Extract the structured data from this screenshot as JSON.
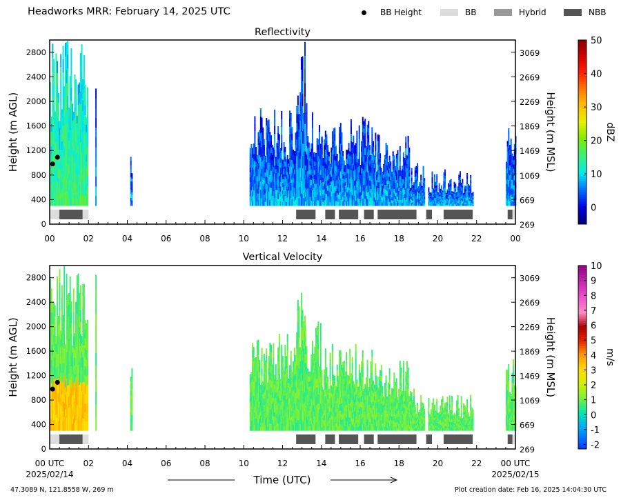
{
  "title": "Headworks MRR:  February 14, 2025 UTC",
  "legend": [
    {
      "label": "BB Height",
      "color": "#000000",
      "marker": "dot"
    },
    {
      "label": "BB",
      "color": "#dddddd",
      "marker": "patch"
    },
    {
      "label": "Hybrid",
      "color": "#999999",
      "marker": "patch"
    },
    {
      "label": "NBB",
      "color": "#555555",
      "marker": "patch"
    }
  ],
  "x_axis": {
    "label": "Time (UTC)",
    "ticks": [
      "00",
      "02",
      "04",
      "06",
      "08",
      "10",
      "12",
      "14",
      "16",
      "18",
      "20",
      "22",
      "00"
    ],
    "first_tick": "00 UTC",
    "last_tick": "00 UTC",
    "start_date": "2025/02/14",
    "end_date": "2025/02/15"
  },
  "footer": {
    "location": "47.3089 N, 121.8558 W, 269 m",
    "created": "Plot creation date: Feb 16, 2025 14:04:30 UTC"
  },
  "chart_data": [
    {
      "type": "heatmap",
      "title": "Reflectivity",
      "ylabel": "Height (m AGL)",
      "ylabel_right": "Height (m MSL)",
      "yticks": [
        0,
        400,
        800,
        1200,
        1600,
        2000,
        2400,
        2800
      ],
      "yticks_right": [
        269,
        669,
        1069,
        1469,
        1869,
        2269,
        2669,
        3069
      ],
      "ylim": [
        0,
        3000
      ],
      "xlim_hours": [
        0,
        24
      ],
      "colorbar": {
        "label": "dBZ",
        "ticks": [
          0,
          10,
          20,
          30,
          40,
          50
        ],
        "range": [
          -5,
          50
        ]
      },
      "bb_height": [
        {
          "t": 0.15,
          "h": 980
        },
        {
          "t": 0.4,
          "h": 1090
        }
      ],
      "bb_class": [
        {
          "start": 0.0,
          "end": 0.5,
          "class": "BB"
        },
        {
          "start": 0.5,
          "end": 1.7,
          "class": "NBB"
        },
        {
          "start": 1.7,
          "end": 2.0,
          "class": "BB"
        },
        {
          "start": 12.7,
          "end": 13.7,
          "class": "NBB"
        },
        {
          "start": 14.2,
          "end": 14.7,
          "class": "NBB"
        },
        {
          "start": 14.9,
          "end": 15.9,
          "class": "NBB"
        },
        {
          "start": 16.2,
          "end": 16.7,
          "class": "NBB"
        },
        {
          "start": 16.9,
          "end": 18.9,
          "class": "NBB"
        },
        {
          "start": 19.4,
          "end": 19.7,
          "class": "NBB"
        },
        {
          "start": 20.3,
          "end": 21.8,
          "class": "NBB"
        },
        {
          "start": 23.6,
          "end": 23.85,
          "class": "NBB"
        },
        {
          "start": 23.85,
          "end": 24.0,
          "class": "BB"
        }
      ]
    },
    {
      "type": "heatmap",
      "title": "Vertical Velocity",
      "ylabel": "Height (m AGL)",
      "ylabel_right": "Height (m MSL)",
      "yticks": [
        0,
        400,
        800,
        1200,
        1600,
        2000,
        2400,
        2800
      ],
      "yticks_right": [
        269,
        669,
        1069,
        1469,
        1869,
        2269,
        2669,
        3069
      ],
      "ylim": [
        0,
        3000
      ],
      "xlim_hours": [
        0,
        24
      ],
      "colorbar": {
        "label": "m/s",
        "ticks": [
          -2,
          -1,
          0,
          1,
          2,
          3,
          4,
          5,
          6,
          7,
          8,
          9,
          10
        ],
        "range": [
          -2.3,
          10
        ]
      },
      "bb_height": [
        {
          "t": 0.15,
          "h": 980
        },
        {
          "t": 0.4,
          "h": 1090
        }
      ],
      "bb_class": [
        {
          "start": 0.0,
          "end": 0.5,
          "class": "BB"
        },
        {
          "start": 0.5,
          "end": 1.7,
          "class": "NBB"
        },
        {
          "start": 1.7,
          "end": 2.0,
          "class": "BB"
        },
        {
          "start": 12.7,
          "end": 13.7,
          "class": "NBB"
        },
        {
          "start": 14.2,
          "end": 14.7,
          "class": "NBB"
        },
        {
          "start": 14.9,
          "end": 15.9,
          "class": "NBB"
        },
        {
          "start": 16.2,
          "end": 16.7,
          "class": "NBB"
        },
        {
          "start": 16.9,
          "end": 18.9,
          "class": "NBB"
        },
        {
          "start": 19.4,
          "end": 19.7,
          "class": "NBB"
        },
        {
          "start": 20.3,
          "end": 21.8,
          "class": "NBB"
        },
        {
          "start": 23.6,
          "end": 23.85,
          "class": "NBB"
        },
        {
          "start": 23.85,
          "end": 24.0,
          "class": "BB"
        }
      ]
    }
  ]
}
